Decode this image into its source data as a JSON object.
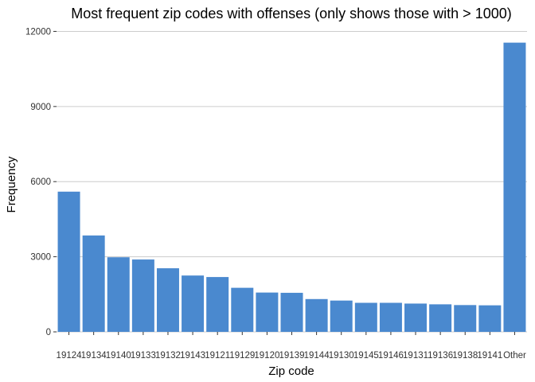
{
  "chart_data": {
    "type": "bar",
    "title": "Most frequent zip codes with offenses (only shows those with > 1000)",
    "xlabel": "Zip code",
    "ylabel": "Frequency",
    "categories": [
      "19124",
      "19134",
      "19140",
      "19133",
      "19132",
      "19143",
      "19121",
      "19129",
      "19120",
      "19139",
      "19144",
      "19130",
      "19145",
      "19146",
      "19131",
      "19136",
      "19138",
      "19141",
      "Other"
    ],
    "values": [
      5600,
      3850,
      2980,
      2890,
      2540,
      2250,
      2190,
      1760,
      1570,
      1560,
      1310,
      1250,
      1160,
      1160,
      1130,
      1100,
      1070,
      1060,
      11550
    ],
    "yticks": [
      0,
      3000,
      6000,
      9000,
      12000
    ],
    "ytick_labels": [
      "0",
      "3000",
      "6000",
      "9000",
      "12000"
    ],
    "ylim": [
      0,
      12300
    ],
    "bar_color": "#4a89cf",
    "grid": true
  }
}
